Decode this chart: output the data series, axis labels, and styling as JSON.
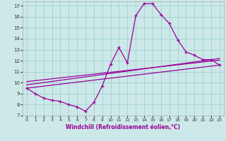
{
  "xlabel": "Windchill (Refroidissement éolien,°C)",
  "background_color": "#cce8e8",
  "grid_color": "#99cccc",
  "line_color": "#990099",
  "xlim": [
    -0.5,
    23.5
  ],
  "ylim": [
    7,
    17.4
  ],
  "yticks": [
    7,
    8,
    9,
    10,
    11,
    12,
    13,
    14,
    15,
    16,
    17
  ],
  "xticks": [
    0,
    1,
    2,
    3,
    4,
    5,
    6,
    7,
    8,
    9,
    10,
    11,
    12,
    13,
    14,
    15,
    16,
    17,
    18,
    19,
    20,
    21,
    22,
    23
  ],
  "line1_x": [
    0,
    1,
    2,
    3,
    4,
    5,
    6,
    7,
    8,
    9,
    10,
    11,
    12,
    13,
    14,
    15,
    16,
    17,
    18,
    19,
    20,
    21,
    22,
    23
  ],
  "line1_y": [
    9.5,
    9.0,
    8.6,
    8.4,
    8.3,
    8.0,
    7.8,
    7.4,
    8.2,
    9.7,
    11.7,
    13.2,
    11.8,
    16.1,
    17.2,
    17.2,
    16.2,
    15.4,
    13.9,
    12.8,
    12.5,
    12.1,
    12.1,
    11.6
  ],
  "line2_x": [
    0,
    23
  ],
  "line2_y": [
    9.5,
    11.6
  ],
  "line3_x": [
    0,
    23
  ],
  "line3_y": [
    9.8,
    12.2
  ],
  "line4_x": [
    0,
    23
  ],
  "line4_y": [
    10.1,
    12.05
  ]
}
